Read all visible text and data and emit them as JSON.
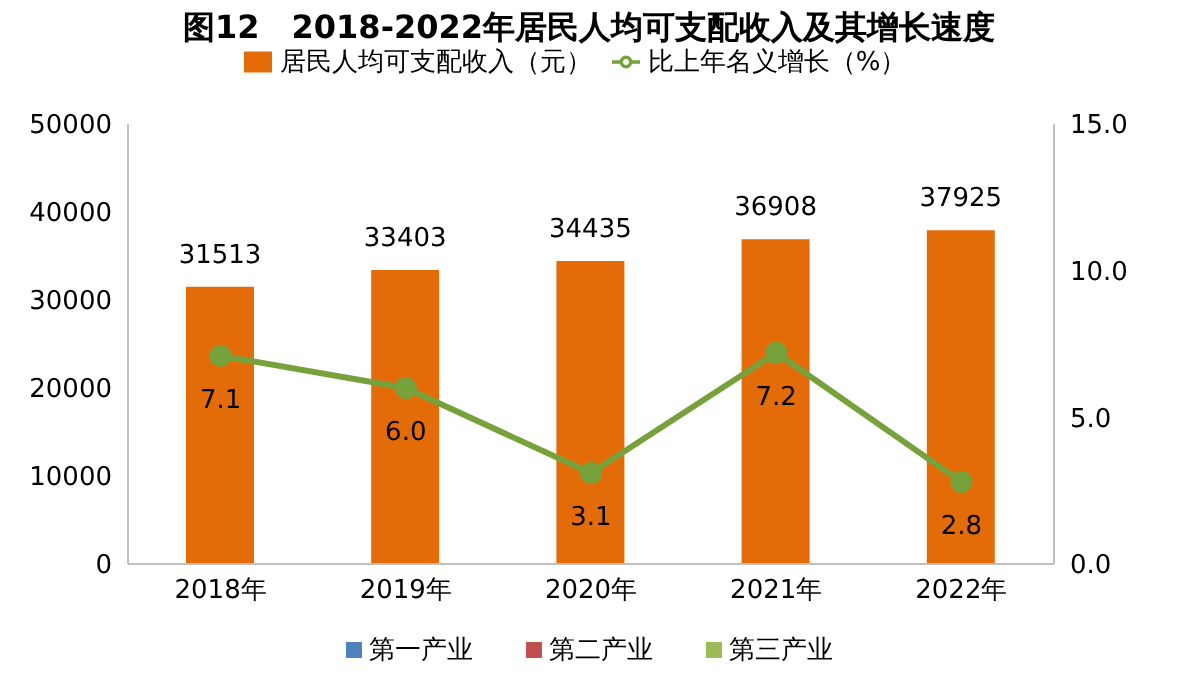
{
  "chart_data": {
    "type": "bar",
    "title": "图12　2018-2022年居民人均可支配收入及其增长速度",
    "categories": [
      "2018年",
      "2019年",
      "2020年",
      "2021年",
      "2022年"
    ],
    "series": [
      {
        "name": "居民人均可支配收入（元）",
        "color": "#e36c09",
        "values": [
          31513,
          33403,
          34435,
          36908,
          37925
        ]
      },
      {
        "name": "比上年名义增长（%）",
        "type": "line",
        "axis": "y2",
        "color": "#77a23b",
        "values": [
          7.1,
          6.0,
          3.1,
          7.2,
          2.8
        ],
        "value_labels": [
          "7.1",
          "6.0",
          "3.1",
          "7.2",
          "2.8"
        ]
      }
    ],
    "ylim": [
      0,
      50000
    ],
    "yticks": [
      0,
      10000,
      20000,
      30000,
      40000,
      50000
    ],
    "y2lim": [
      0,
      15
    ],
    "y2ticks": [
      {
        "value": 0,
        "label": "0.0"
      },
      {
        "value": 5,
        "label": "5.0"
      },
      {
        "value": 10,
        "label": "10.0"
      },
      {
        "value": 15,
        "label": "15.0"
      }
    ],
    "data_labels": true,
    "legend": "top",
    "marker": "circle",
    "annotations": [
      "第一产业",
      "第二产业",
      "第三产业"
    ]
  }
}
